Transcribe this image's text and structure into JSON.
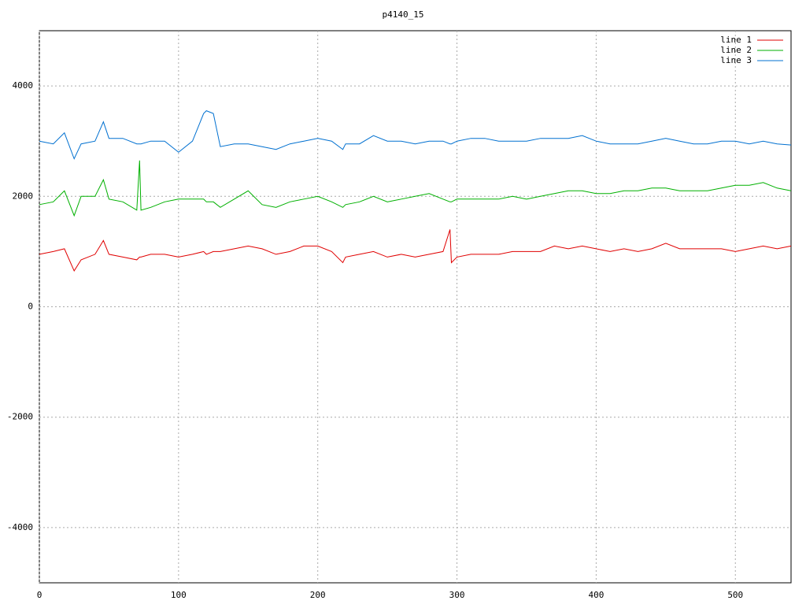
{
  "chart_data": {
    "type": "line",
    "title": "p4140_15",
    "x": [
      0,
      10,
      18,
      25,
      30,
      40,
      46,
      50,
      60,
      70,
      72,
      73,
      80,
      90,
      100,
      110,
      118,
      120,
      125,
      130,
      140,
      150,
      160,
      170,
      180,
      190,
      200,
      210,
      218,
      220,
      230,
      240,
      250,
      260,
      270,
      280,
      290,
      295,
      296,
      300,
      310,
      320,
      330,
      340,
      350,
      360,
      370,
      380,
      390,
      400,
      410,
      420,
      430,
      440,
      450,
      460,
      470,
      480,
      490,
      500,
      510,
      520,
      530,
      540
    ],
    "series": [
      {
        "name": "line 1",
        "color": "#e00000",
        "values": [
          950,
          1000,
          1050,
          650,
          850,
          950,
          1200,
          950,
          900,
          850,
          900,
          900,
          950,
          950,
          900,
          950,
          1000,
          950,
          1000,
          1000,
          1050,
          1100,
          1050,
          950,
          1000,
          1100,
          1100,
          1000,
          800,
          900,
          950,
          1000,
          900,
          950,
          900,
          950,
          1000,
          1400,
          800,
          900,
          950,
          950,
          950,
          1000,
          1000,
          1000,
          1100,
          1050,
          1100,
          1050,
          1000,
          1050,
          1000,
          1050,
          1150,
          1050,
          1050,
          1050,
          1050,
          1000,
          1050,
          1100,
          1050,
          1100
        ]
      },
      {
        "name": "line 2",
        "color": "#00b000",
        "values": [
          1850,
          1900,
          2100,
          1650,
          2000,
          2000,
          2300,
          1950,
          1900,
          1750,
          2650,
          1750,
          1800,
          1900,
          1950,
          1950,
          1950,
          1900,
          1900,
          1800,
          1950,
          2100,
          1850,
          1800,
          1900,
          1950,
          2000,
          1900,
          1800,
          1850,
          1900,
          2000,
          1900,
          1950,
          2000,
          2050,
          1950,
          1900,
          1900,
          1950,
          1950,
          1950,
          1950,
          2000,
          1950,
          2000,
          2050,
          2100,
          2100,
          2050,
          2050,
          2100,
          2100,
          2150,
          2150,
          2100,
          2100,
          2100,
          2150,
          2200,
          2200,
          2250,
          2150,
          2100
        ]
      },
      {
        "name": "line 3",
        "color": "#0070d0",
        "values": [
          3000,
          2950,
          3150,
          2680,
          2950,
          3000,
          3350,
          3050,
          3050,
          2950,
          2950,
          2950,
          3000,
          3000,
          2800,
          3000,
          3500,
          3550,
          3500,
          2900,
          2950,
          2950,
          2900,
          2850,
          2950,
          3000,
          3050,
          3000,
          2850,
          2950,
          2950,
          3100,
          3000,
          3000,
          2950,
          3000,
          3000,
          2950,
          2950,
          3000,
          3050,
          3050,
          3000,
          3000,
          3000,
          3050,
          3050,
          3050,
          3100,
          3000,
          2950,
          2950,
          2950,
          3000,
          3050,
          3000,
          2950,
          2950,
          3000,
          3000,
          2950,
          3000,
          2950,
          2930
        ]
      }
    ],
    "xlim": [
      0,
      540
    ],
    "ylim": [
      -5000,
      5000
    ],
    "xticks": [
      0,
      100,
      200,
      300,
      400,
      500
    ],
    "yticks": [
      -4000,
      -2000,
      0,
      2000,
      4000
    ],
    "grid": true,
    "legend": "top-right"
  }
}
